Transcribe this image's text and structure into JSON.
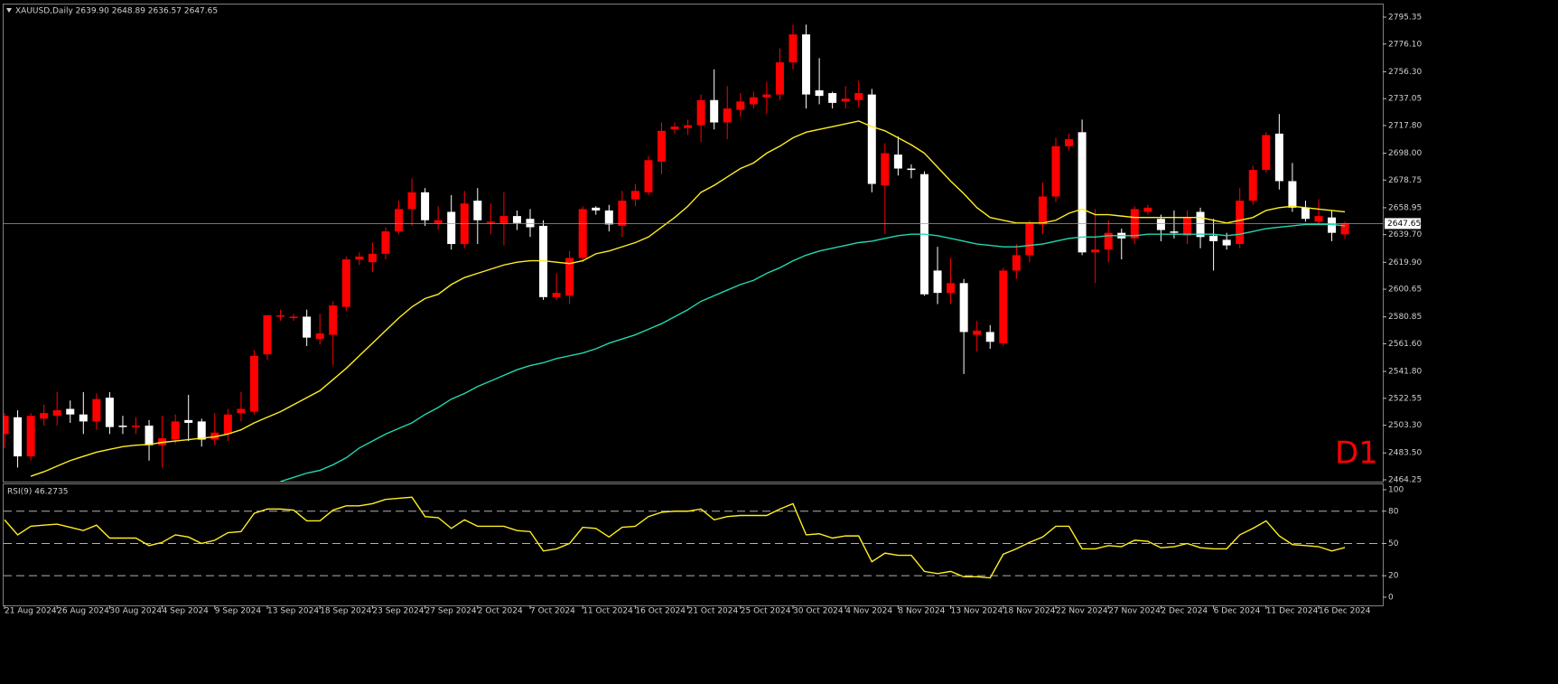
{
  "chart_data": [
    {
      "type": "candlestick",
      "title": "XAUUSD,Daily 2639.90 2648.89 2636.57 2647.65",
      "categories": [
        "21 Aug 2024",
        null,
        null,
        null,
        "26 Aug 2024",
        null,
        null,
        null,
        "30 Aug 2024",
        null,
        null,
        null,
        "4 Sep 2024",
        null,
        null,
        null,
        "9 Sep 2024",
        null,
        null,
        null,
        "13 Sep 2024",
        null,
        null,
        null,
        "18 Sep 2024",
        null,
        null,
        null,
        "23 Sep 2024",
        null,
        null,
        null,
        "27 Sep 2024",
        null,
        null,
        null,
        "2 Oct 2024",
        null,
        null,
        null,
        "7 Oct 2024",
        null,
        null,
        null,
        "11 Oct 2024",
        null,
        null,
        null,
        "16 Oct 2024",
        null,
        null,
        null,
        "21 Oct 2024",
        null,
        null,
        null,
        "25 Oct 2024",
        null,
        null,
        null,
        "30 Oct 2024",
        null,
        null,
        null,
        "4 Nov 2024",
        null,
        null,
        null,
        "8 Nov 2024",
        null,
        null,
        null,
        "13 Nov 2024",
        null,
        null,
        null,
        "18 Nov 2024",
        null,
        null,
        null,
        "22 Nov 2024",
        null,
        null,
        null,
        "27 Nov 2024",
        null,
        null,
        null,
        "2 Dec 2024",
        null,
        null,
        null,
        "6 Dec 2024",
        null,
        null,
        null,
        "11 Dec 2024",
        null,
        null,
        null,
        "16 Dec 2024",
        null,
        null
      ],
      "open": [
        2497,
        2509,
        2481,
        2508,
        2510,
        2515,
        2511,
        2506,
        2523,
        2503,
        2502,
        2503,
        2489,
        2493,
        2507,
        2506,
        2493,
        2497,
        2512,
        2513,
        2554,
        2581,
        2580,
        2581,
        2565,
        2568,
        2588,
        2622,
        2620,
        2626,
        2642,
        2658,
        2670,
        2648,
        2656,
        2633,
        2664,
        2648,
        2648,
        2653,
        2651,
        2646,
        2595,
        2596,
        2623,
        2659,
        2657,
        2646,
        2665,
        2670,
        2692,
        2715,
        2716,
        2718,
        2736,
        2720,
        2729,
        2733,
        2738,
        2740,
        2763,
        2783,
        2743,
        2741,
        2735,
        2736,
        2740,
        2675,
        2697,
        2687,
        2683,
        2614,
        2598,
        2605,
        2568,
        2570,
        2562,
        2614,
        2625,
        2647,
        2667,
        2703,
        2713,
        2627,
        2629,
        2641,
        2637,
        2656,
        2651,
        2642,
        2639,
        2656,
        2639,
        2636,
        2633,
        2664,
        2686,
        2712,
        2678,
        2659,
        2649,
        2652,
        2639.9
      ],
      "high": [
        2512,
        2514,
        2512,
        2518,
        2527,
        2521,
        2527,
        2526,
        2527,
        2510,
        2509,
        2507,
        2510,
        2511,
        2525,
        2508,
        2512,
        2515,
        2527,
        2557,
        2582,
        2586,
        2583,
        2586,
        2583,
        2592,
        2624,
        2627,
        2634,
        2645,
        2664,
        2680,
        2673,
        2660,
        2668,
        2671,
        2673,
        2662,
        2670,
        2657,
        2658,
        2650,
        2612,
        2628,
        2660,
        2660,
        2661,
        2671,
        2676,
        2696,
        2720,
        2720,
        2722,
        2740,
        2758,
        2746,
        2741,
        2742,
        2749,
        2773,
        2790,
        2790,
        2766,
        2742,
        2746,
        2750,
        2744,
        2705,
        2710,
        2690,
        2685,
        2631,
        2623,
        2608,
        2578,
        2575,
        2616,
        2633,
        2650,
        2677,
        2709,
        2712,
        2722,
        2658,
        2650,
        2644,
        2660,
        2661,
        2654,
        2657,
        2657,
        2659,
        2651,
        2641,
        2673,
        2689,
        2713,
        2726,
        2691,
        2664,
        2665,
        2657,
        2648.89
      ],
      "low": [
        2487,
        2473,
        2478,
        2503,
        2503,
        2505,
        2497,
        2500,
        2497,
        2497,
        2497,
        2478,
        2473,
        2490,
        2492,
        2488,
        2489,
        2492,
        2506,
        2511,
        2550,
        2578,
        2578,
        2560,
        2561,
        2546,
        2585,
        2618,
        2613,
        2622,
        2640,
        2646,
        2646,
        2643,
        2629,
        2630,
        2633,
        2640,
        2632,
        2643,
        2638,
        2593,
        2593,
        2590,
        2620,
        2654,
        2642,
        2638,
        2660,
        2668,
        2683,
        2712,
        2711,
        2706,
        2715,
        2708,
        2724,
        2730,
        2726,
        2736,
        2758,
        2730,
        2733,
        2730,
        2730,
        2731,
        2670,
        2640,
        2682,
        2680,
        2596,
        2590,
        2590,
        2540,
        2556,
        2558,
        2560,
        2608,
        2620,
        2640,
        2663,
        2700,
        2625,
        2605,
        2620,
        2622,
        2633,
        2654,
        2635,
        2637,
        2633,
        2630,
        2614,
        2629,
        2630,
        2661,
        2684,
        2672,
        2656,
        2649,
        2647,
        2635,
        2636.57
      ],
      "close": [
        2510,
        2481,
        2510,
        2512,
        2514,
        2511,
        2506,
        2522,
        2502,
        2502,
        2503,
        2489,
        2494,
        2506,
        2505,
        2493,
        2498,
        2511,
        2515,
        2553,
        2582,
        2582,
        2581,
        2566,
        2569,
        2589,
        2622,
        2624,
        2626,
        2642,
        2658,
        2670,
        2650,
        2650,
        2633,
        2662,
        2650,
        2649,
        2653,
        2648,
        2645,
        2595,
        2598,
        2623,
        2658,
        2657,
        2647,
        2664,
        2671,
        2693,
        2714,
        2717,
        2718,
        2736,
        2720,
        2730,
        2735,
        2738,
        2740,
        2763,
        2783,
        2740,
        2739,
        2734,
        2737,
        2741,
        2676,
        2698,
        2687,
        2686,
        2597,
        2598,
        2605,
        2570,
        2571,
        2563,
        2614,
        2625,
        2648,
        2667,
        2703,
        2708,
        2627,
        2629,
        2641,
        2637,
        2658,
        2659,
        2643,
        2641,
        2652,
        2638,
        2635,
        2632,
        2664,
        2686,
        2711,
        2678,
        2659,
        2651,
        2653,
        2641,
        2647.65
      ],
      "up_color": "#ff0000",
      "down_color": "#ffffff",
      "series": [
        {
          "color": "#ffee22",
          "values": [
            null,
            null,
            2466.8,
            2470,
            2474,
            2478,
            2481,
            2484,
            2486,
            2488,
            2489,
            2489.5,
            2491,
            2492,
            2493,
            2494,
            2495,
            2497,
            2500,
            2505,
            2509,
            2513,
            2518,
            2523,
            2528,
            2536,
            2544,
            2553,
            2562,
            2571,
            2580,
            2588,
            2594,
            2597,
            2604,
            2609,
            2612,
            2615,
            2618,
            2620,
            2621,
            2621,
            2620,
            2619,
            2621,
            2626,
            2628,
            2631,
            2634,
            2638,
            2645,
            2652,
            2660,
            2670,
            2675,
            2681,
            2687,
            2691,
            2698,
            2703,
            2709,
            2713,
            2715,
            2717,
            2719,
            2721,
            2717,
            2714,
            2709,
            2704,
            2698,
            2688,
            2678,
            2669,
            2659,
            2652,
            2650,
            2648,
            2648,
            2648,
            2650,
            2655,
            2658,
            2654,
            2654,
            2653,
            2652,
            2652,
            2652,
            2652,
            2652,
            2652,
            2650,
            2648,
            2650,
            2652,
            2657,
            2659,
            2660,
            2659,
            2658,
            2657,
            2656
          ]
        },
        {
          "color": "#22d8b0",
          "values": [
            null,
            null,
            null,
            null,
            null,
            null,
            null,
            null,
            null,
            null,
            null,
            null,
            null,
            null,
            null,
            null,
            null,
            null,
            null,
            null,
            null,
            2463,
            2466,
            2469,
            2471,
            2475,
            2480,
            2487,
            2492,
            2497,
            2501,
            2505,
            2511,
            2516,
            2522,
            2526,
            2531,
            2535,
            2539,
            2543,
            2546,
            2548,
            2551,
            2553,
            2555,
            2558,
            2562,
            2565,
            2568,
            2572,
            2576,
            2581,
            2586,
            2592,
            2596,
            2600,
            2604,
            2607,
            2612,
            2616,
            2621,
            2625,
            2628,
            2630,
            2632,
            2634,
            2635,
            2637,
            2639,
            2640,
            2640,
            2639,
            2637,
            2635,
            2633,
            2632,
            2631,
            2631,
            2632,
            2633,
            2635,
            2637,
            2638,
            2638,
            2639,
            2639,
            2639,
            2640,
            2640,
            2640,
            2640,
            2640,
            2640,
            2639,
            2640,
            2642,
            2644,
            2645,
            2646,
            2647,
            2647,
            2647,
            2646
          ]
        }
      ],
      "ylim": [
        2462.95,
        2802.46
      ],
      "yticks": [
        2795.35,
        {
          "value": 2776.1,
          "label": "2776.10"
        },
        {
          "value": 2756.3,
          "label": "2756.30"
        },
        2737.05,
        {
          "value": 2717.8,
          "label": "2717.80"
        },
        {
          "value": 2698,
          "label": "2698.00"
        },
        2678.75,
        2658.95,
        {
          "value": 2639.7,
          "label": "2639.70"
        },
        {
          "value": 2619.9,
          "label": "2619.90"
        },
        2600.65,
        2580.85,
        {
          "value": 2561.6,
          "label": "2561.60"
        },
        {
          "value": 2541.8,
          "label": "2541.80"
        },
        2522.55,
        {
          "value": 2503.3,
          "label": "2503.30"
        },
        {
          "value": 2483.5,
          "label": "2483.50"
        },
        2464.25
      ],
      "last_price_label": "2647.65",
      "annotation": "D1"
    },
    {
      "type": "line",
      "title": "RSI(9) 46.2735",
      "color": "#ffee22",
      "values": [
        72,
        58,
        66,
        67,
        68,
        65,
        62,
        67,
        55,
        55,
        55,
        48,
        51,
        58,
        56,
        50,
        53,
        60,
        61,
        78,
        82,
        82,
        81,
        71,
        71,
        81,
        85,
        85,
        87,
        91,
        92,
        93,
        75,
        74,
        64,
        72,
        66,
        66,
        66,
        62,
        61,
        43,
        45,
        50,
        65,
        64,
        56,
        65,
        66,
        75,
        79,
        80,
        80,
        82,
        72,
        75,
        76,
        76,
        76,
        82,
        87,
        58,
        59,
        55,
        57,
        57,
        33,
        41,
        39,
        39,
        24,
        22,
        24,
        19,
        19,
        18,
        40,
        45,
        51,
        56,
        66,
        66,
        45,
        45,
        48,
        47,
        53,
        52,
        46,
        47,
        50,
        46,
        45,
        45,
        58,
        64,
        71,
        57,
        49,
        48,
        47,
        43,
        46.2735
      ],
      "ylim": [
        -7.6,
        105
      ],
      "yticks": [
        100,
        80,
        50,
        20,
        0
      ],
      "levels": [
        80,
        50,
        20
      ]
    }
  ]
}
